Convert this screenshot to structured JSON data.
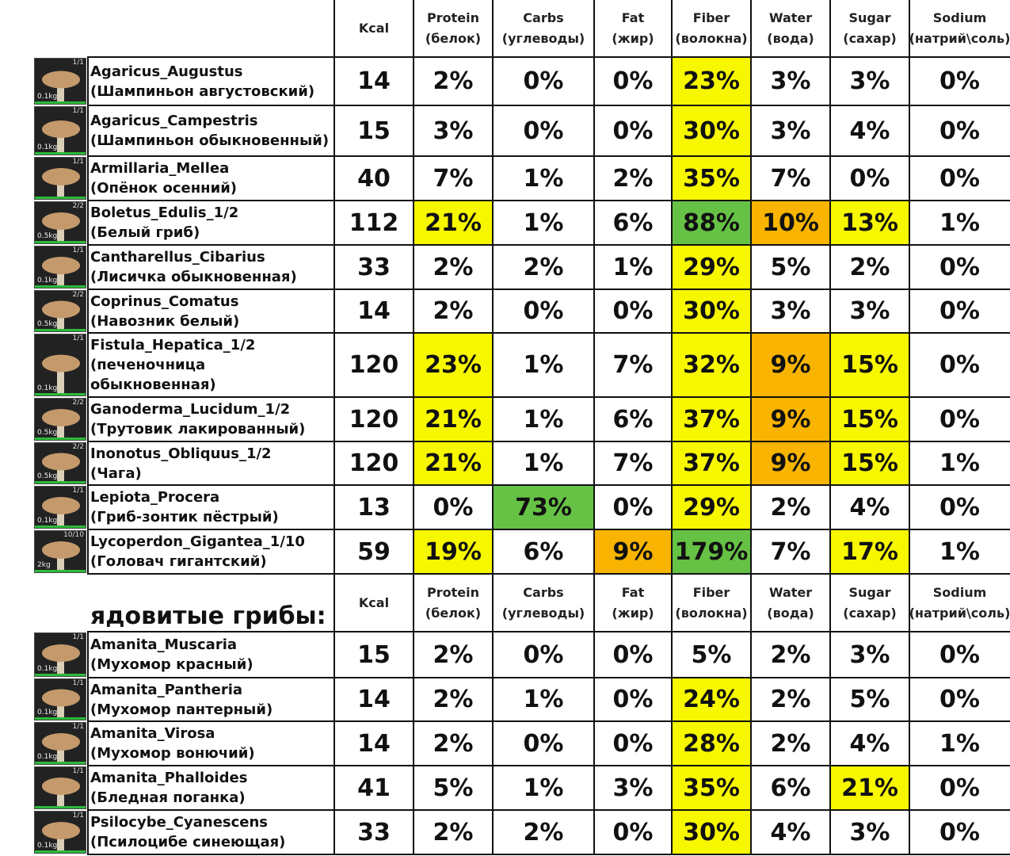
{
  "columns": [
    {
      "top": "Kcal"
    },
    {
      "top": "Protein",
      "bottom": "(белок)"
    },
    {
      "top": "Carbs",
      "bottom": "(углеводы)"
    },
    {
      "top": "Fat",
      "bottom": "(жир)"
    },
    {
      "top": "Fiber",
      "bottom": "(волокна)"
    },
    {
      "top": "Water",
      "bottom": "(вода)"
    },
    {
      "top": "Sugar",
      "bottom": "(сахар)"
    },
    {
      "top": "Sodium",
      "bottom": "(натрий\\соль)"
    }
  ],
  "sections": [
    {
      "rows": [
        {
          "name": [
            "Agaricus_Augustus",
            "(Шампиньон августовский)"
          ],
          "count": "1/1",
          "weight": "0.1kg",
          "cells": [
            "14",
            "2%",
            "0%",
            "0%",
            "23%",
            "3%",
            "3%",
            "0%"
          ],
          "fills": [
            null,
            null,
            null,
            null,
            "#f7f700",
            null,
            null,
            null
          ]
        },
        {
          "name": [
            "Agaricus_Campestris",
            "(Шампиньон обыкновенный)"
          ],
          "count": "1/1",
          "weight": "0.1kg",
          "cells": [
            "15",
            "3%",
            "0%",
            "0%",
            "30%",
            "3%",
            "4%",
            "0%"
          ],
          "fills": [
            null,
            null,
            null,
            null,
            "#f7f700",
            null,
            null,
            null
          ]
        },
        {
          "name": [
            "Armillaria_Mellea",
            "(Опёнок осенний)"
          ],
          "count": "1/1",
          "cells": [
            "40",
            "7%",
            "1%",
            "2%",
            "35%",
            "7%",
            "0%",
            "0%"
          ],
          "fills": [
            null,
            null,
            null,
            null,
            "#f7f700",
            null,
            null,
            null
          ]
        },
        {
          "name": [
            "Boletus_Edulis_1/2",
            "(Белый гриб)"
          ],
          "count": "2/2",
          "weight": "0.5kg",
          "cells": [
            "112",
            "21%",
            "1%",
            "6%",
            "88%",
            "10%",
            "13%",
            "1%"
          ],
          "fills": [
            null,
            "#f7f700",
            null,
            null,
            "#66c244",
            "#f8b400",
            "#f7f700",
            null
          ]
        },
        {
          "name": [
            "Cantharellus_Cibarius",
            " (Лисичка обыкновенная)"
          ],
          "count": "1/1",
          "weight": "0.1kg",
          "cells": [
            "33",
            "2%",
            "2%",
            "1%",
            "29%",
            "5%",
            "2%",
            "0%"
          ],
          "fills": [
            null,
            null,
            null,
            null,
            "#f7f700",
            null,
            null,
            null
          ]
        },
        {
          "name": [
            "Coprinus_Comatus",
            " (Навозник белый)"
          ],
          "count": "2/2",
          "weight": "0.5kg",
          "cells": [
            "14",
            "2%",
            "0%",
            "0%",
            "30%",
            "3%",
            "3%",
            "0%"
          ],
          "fills": [
            null,
            null,
            null,
            null,
            "#f7f700",
            null,
            null,
            null
          ]
        },
        {
          "name": [
            "Fistula_Hepatica_1/2",
            "(печеночница",
            "обыкновенная)"
          ],
          "count": "1/1",
          "weight": "0.1kg",
          "cells": [
            "120",
            "23%",
            "1%",
            "7%",
            "32%",
            "9%",
            "15%",
            "0%"
          ],
          "fills": [
            null,
            "#f7f700",
            null,
            null,
            "#f7f700",
            "#f8b400",
            "#f7f700",
            null
          ]
        },
        {
          "name": [
            "Ganoderma_Lucidum_1/2",
            "(Трутовик лакированный)"
          ],
          "count": "2/2",
          "weight": "0.5kg",
          "cells": [
            "120",
            "21%",
            "1%",
            "6%",
            "37%",
            "9%",
            "15%",
            "0%"
          ],
          "fills": [
            null,
            "#f7f700",
            null,
            null,
            "#f7f700",
            "#f8b400",
            "#f7f700",
            null
          ]
        },
        {
          "name": [
            "Inonotus_Obliquus_1/2",
            "(Чага)"
          ],
          "count": "2/2",
          "weight": "0.5kg",
          "cells": [
            "120",
            "21%",
            "1%",
            "7%",
            "37%",
            "9%",
            "15%",
            "1%"
          ],
          "fills": [
            null,
            "#f7f700",
            null,
            null,
            "#f7f700",
            "#f8b400",
            "#f7f700",
            null
          ]
        },
        {
          "name": [
            "Lepiota_Procera",
            "(Гриб-зонтик пёстрый)"
          ],
          "count": "1/1",
          "weight": "0.1kg",
          "cells": [
            "13",
            "0%",
            "73%",
            "0%",
            "29%",
            "2%",
            "4%",
            "0%"
          ],
          "fills": [
            null,
            null,
            "#66c244",
            null,
            "#f7f700",
            null,
            null,
            null
          ]
        },
        {
          "name": [
            "Lycoperdon_Gigantea_1/10",
            "(Головач гигантский)"
          ],
          "count": "10/10",
          "weight": "2kg",
          "cells": [
            "59",
            "19%",
            "6%",
            "9%",
            "179%",
            "7%",
            "17%",
            "1%"
          ],
          "fills": [
            null,
            "#f7f700",
            null,
            "#f8b400",
            "#66c244",
            null,
            "#f7f700",
            null
          ]
        }
      ]
    },
    {
      "title": "ядовитые грибы:",
      "rows": [
        {
          "name": [
            "Amanita_Muscaria",
            "(Мухомор красный)"
          ],
          "count": "1/1",
          "weight": "0.1kg",
          "cells": [
            "15",
            "2%",
            "0%",
            "0%",
            "5%",
            "2%",
            "3%",
            "0%"
          ],
          "fills": [
            null,
            null,
            null,
            null,
            null,
            null,
            null,
            null
          ]
        },
        {
          "name": [
            "Amanita_Pantheria",
            "(Мухомор пантерный)"
          ],
          "count": "1/1",
          "weight": "0.1kg",
          "cells": [
            "14",
            "2%",
            "1%",
            "0%",
            "24%",
            "2%",
            "5%",
            "0%"
          ],
          "fills": [
            null,
            null,
            null,
            null,
            "#f7f700",
            null,
            null,
            null
          ]
        },
        {
          "name": [
            "Amanita_Virosa",
            "(Мухомор вонючий)"
          ],
          "count": "1/1",
          "weight": "0.1kg",
          "cells": [
            "14",
            "2%",
            "0%",
            "0%",
            "28%",
            "2%",
            "4%",
            "1%"
          ],
          "fills": [
            null,
            null,
            null,
            null,
            "#f7f700",
            null,
            null,
            null
          ]
        },
        {
          "name": [
            "Amanita_Phalloides",
            "(Бледная поганка)"
          ],
          "count": "1/1",
          "cells": [
            "41",
            "5%",
            "1%",
            "3%",
            "35%",
            "6%",
            "21%",
            "0%"
          ],
          "fills": [
            null,
            null,
            null,
            null,
            "#f7f700",
            null,
            "#f7f700",
            null
          ]
        },
        {
          "name": [
            "Psilocybe_Cyanescens",
            "(Псилоцибе синеющая)"
          ],
          "count": "1/1",
          "weight": "0.1kg",
          "cells": [
            "33",
            "2%",
            "2%",
            "0%",
            "30%",
            "4%",
            "3%",
            "0%"
          ],
          "fills": [
            null,
            null,
            null,
            null,
            "#f7f700",
            null,
            null,
            null
          ]
        }
      ]
    }
  ]
}
